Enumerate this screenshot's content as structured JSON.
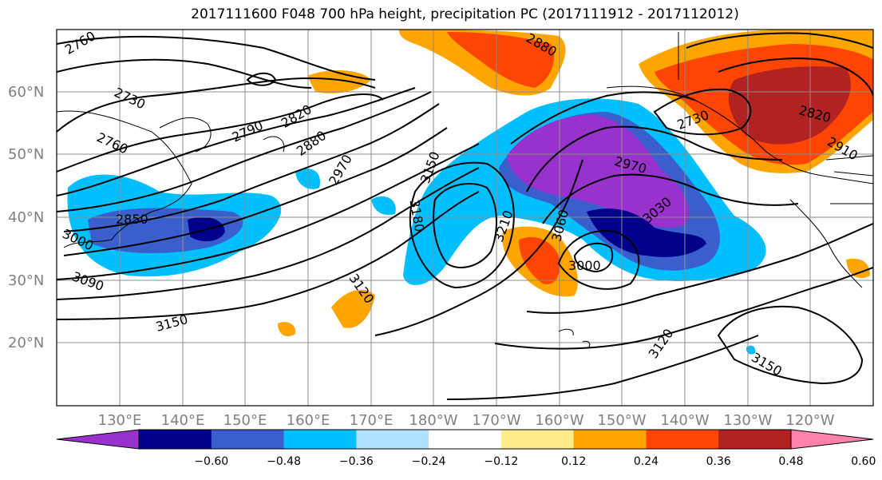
{
  "title": "2017111600 F048 700 hPa height, precipitation PC (2017111912 - 2017112012)",
  "map": {
    "lat_labels": [
      "60°N",
      "50°N",
      "40°N",
      "30°N",
      "20°N"
    ],
    "lon_labels": [
      "130°E",
      "140°E",
      "150°E",
      "160°E",
      "170°E",
      "180°W",
      "170°W",
      "160°W",
      "150°W",
      "140°W",
      "130°W",
      "120°W"
    ],
    "contour_labels": [
      "2760",
      "2730",
      "2760",
      "2790",
      "2820",
      "2850",
      "2880",
      "2970",
      "3000",
      "3090",
      "3150",
      "3120",
      "3150",
      "3180",
      "3210",
      "3060",
      "3000",
      "2880",
      "2730",
      "2820",
      "2910",
      "2970",
      "3030",
      "3120",
      "3150",
      "2850"
    ]
  },
  "colorbar": {
    "ticks": [
      "−0.60",
      "−0.48",
      "−0.36",
      "−0.24",
      "−0.12",
      "0.12",
      "0.24",
      "0.36",
      "0.48",
      "0.60"
    ],
    "colors": [
      "#9932cc",
      "#00008b",
      "#3a5fcd",
      "#00bfff",
      "#b0e2ff",
      "#ffffff",
      "#ffec8b",
      "#ffa500",
      "#ff4500",
      "#b22222",
      "#ff82ab"
    ]
  }
}
